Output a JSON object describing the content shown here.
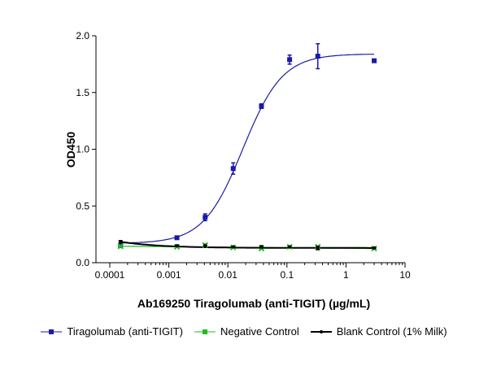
{
  "chart_data": {
    "type": "scatter",
    "xlabel": "Ab169250 Tiragolumab (anti-TIGIT) (µg/mL)",
    "ylabel": "OD450",
    "xscale": "log",
    "xlim": [
      0.0001,
      10
    ],
    "ylim": [
      0,
      2.0
    ],
    "xticks": [
      "0.0001",
      "0.001",
      "0.01",
      "0.1",
      "1",
      "10"
    ],
    "yticks": [
      "0.0",
      "0.5",
      "1.0",
      "1.5",
      "2.0"
    ],
    "grid": false,
    "legend_position": "bottom",
    "series": [
      {
        "name": "Tiragolumab (anti-TIGIT)",
        "color": "#1a1aa8",
        "marker": "square",
        "x": [
          0.000152,
          0.00137,
          0.00412,
          0.0123,
          0.037,
          0.111,
          0.333,
          3
        ],
        "y": [
          0.15,
          0.22,
          0.4,
          0.83,
          1.38,
          1.79,
          1.82,
          1.78
        ],
        "err": [
          0.01,
          0.01,
          0.03,
          0.05,
          0.02,
          0.04,
          0.11,
          0.01
        ],
        "fit": {
          "bottom": 0.17,
          "top": 1.84,
          "ec50": 0.018,
          "hill": 1.3
        }
      },
      {
        "name": "Negative Control",
        "color": "#22bb22",
        "marker": "x",
        "x": [
          0.000152,
          0.00137,
          0.00412,
          0.0123,
          0.037,
          0.111,
          0.333,
          3
        ],
        "y": [
          0.145,
          0.14,
          0.155,
          0.135,
          0.125,
          0.14,
          0.14,
          0.125
        ],
        "err": [
          0.005,
          0.005,
          0.01,
          0.005,
          0.005,
          0.005,
          0.005,
          0.005
        ]
      },
      {
        "name": "Blank Control (1% Milk)",
        "color": "#000000",
        "marker": "dot",
        "x": [
          0.000152,
          0.00137,
          0.00412,
          0.0123,
          0.037,
          0.111,
          0.333,
          3
        ],
        "y": [
          0.185,
          0.15,
          0.15,
          0.14,
          0.14,
          0.14,
          0.13,
          0.13
        ],
        "err": [
          0.01,
          0.005,
          0.005,
          0.005,
          0.01,
          0.005,
          0.015,
          0.005
        ]
      }
    ]
  }
}
